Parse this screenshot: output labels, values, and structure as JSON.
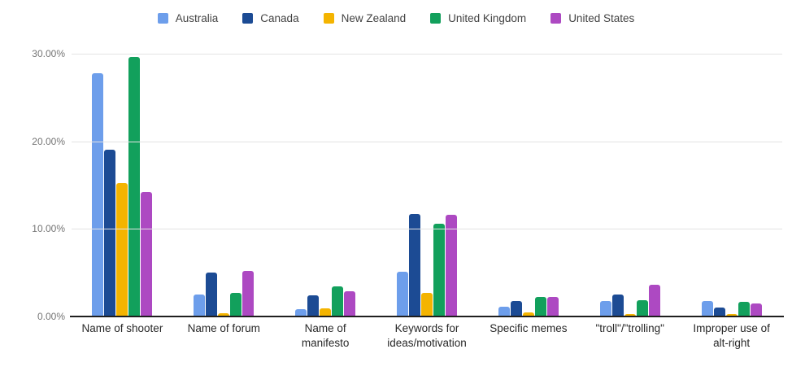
{
  "chart_data": {
    "type": "bar",
    "title": "",
    "xlabel": "",
    "ylabel": "",
    "ylim": [
      0,
      30
    ],
    "grid": true,
    "legend_position": "top",
    "y_ticks": [
      "30.00%",
      "20.00%",
      "10.00%",
      "0.00%"
    ],
    "categories": [
      "Name of shooter",
      "Name of forum",
      "Name of\nmanifesto",
      "Keywords for\nideas/motivation",
      "Specific memes",
      "\"troll\"/\"trolling\"",
      "Improper use of\nalt-right"
    ],
    "value_unit": "%",
    "series": [
      {
        "name": "Australia",
        "color": "#6d9eeb",
        "values": [
          27.8,
          2.5,
          0.8,
          5.1,
          1.1,
          1.8,
          1.8
        ]
      },
      {
        "name": "Canada",
        "color": "#1c4b94",
        "values": [
          19.0,
          5.0,
          2.4,
          11.7,
          1.8,
          2.5,
          1.0
        ]
      },
      {
        "name": "New Zealand",
        "color": "#f4b400",
        "values": [
          15.2,
          0.4,
          0.9,
          2.7,
          0.5,
          0.3,
          0.3
        ]
      },
      {
        "name": "United Kingdom",
        "color": "#12a05c",
        "values": [
          29.6,
          2.7,
          3.4,
          10.6,
          2.2,
          1.9,
          1.7
        ]
      },
      {
        "name": "United States",
        "color": "#ad49c2",
        "values": [
          14.2,
          5.2,
          2.9,
          11.6,
          2.2,
          3.6,
          1.5
        ]
      }
    ]
  }
}
